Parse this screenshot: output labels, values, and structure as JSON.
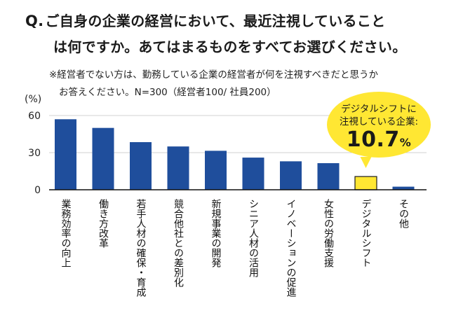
{
  "question": {
    "mark": "Q.",
    "line1": "ご自身の企業の経営において、最近注視していること",
    "line2": "は何ですか。あてはまるものをすべてお選びください。"
  },
  "note": {
    "line1": "※経営者でない方は、勤務している企業の経営者が何を注視すべきだと思うか",
    "line2": "お答えください。N=300（経営者100/ 社員200）"
  },
  "colors": {
    "bar": "#1f4e9c",
    "highlight": "#ffe733",
    "highlight_stroke": "#1a1a1a",
    "grid": "#d0d0d0",
    "axis": "#111111"
  },
  "callout": {
    "line1": "デジタルシフトに",
    "line2": "注視している企業:",
    "value": "10.7",
    "unit": "%"
  },
  "chart_data": {
    "type": "bar",
    "ylabel": "(%)",
    "ylim": [
      0,
      60
    ],
    "yticks": [
      "0",
      "30",
      "60"
    ],
    "categories": [
      "業務効率の向上",
      "働き方改革",
      "若手人材の確保・育成",
      "競合他社との差別化",
      "新規事業の開発",
      "シニア人材の活用",
      "イノベーションの促進",
      "女性の労働支援",
      "デジタルシフト",
      "その他"
    ],
    "values": [
      57,
      50,
      38.5,
      35,
      31.5,
      26,
      23,
      21.5,
      10.7,
      2.5
    ],
    "highlight_index": 8,
    "grid": true
  }
}
